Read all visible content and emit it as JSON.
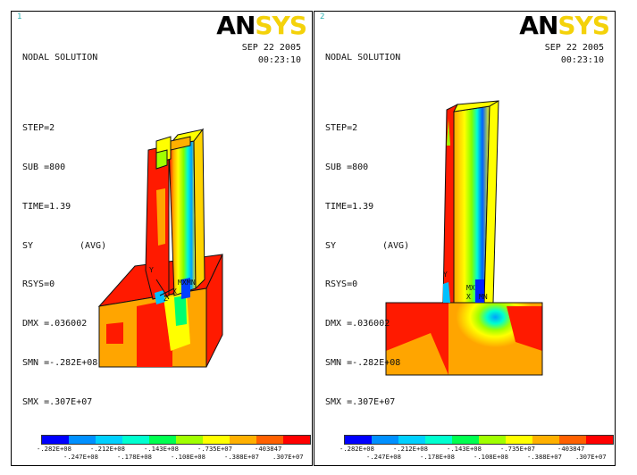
{
  "panels": [
    {
      "window_number": "1",
      "title": "NODAL SOLUTION",
      "step": "STEP=2",
      "sub": "SUB =800",
      "time": "TIME=1.39",
      "quantity": "SY",
      "avg": "(AVG)",
      "rsys": "RSYS=0",
      "dmx": "DMX =.036002",
      "smn": "SMN =-.282E+08",
      "smx": "SMX =.307E+07",
      "date": "SEP 22 2005",
      "clock": "00:23:10",
      "markers": {
        "mx": "MX",
        "mn": "MN",
        "x": "X",
        "y": "Y",
        "z": "Z"
      }
    },
    {
      "window_number": "2",
      "title": "NODAL SOLUTION",
      "step": "STEP=2",
      "sub": "SUB =800",
      "time": "TIME=1.39",
      "quantity": "SY",
      "avg": "(AVG)",
      "rsys": "RSYS=0",
      "dmx": "DMX =.036002",
      "smn": "SMN =-.282E+08",
      "smx": "SMX =.307E+07",
      "date": "SEP 22 2005",
      "clock": "00:23:10",
      "markers": {
        "mx": "MX",
        "mn": "MN",
        "x": "X",
        "y": "Y"
      }
    }
  ],
  "logo": {
    "part1": "AN",
    "part2": "SYS"
  },
  "legend": {
    "colors": [
      "#0000ff",
      "#0090ff",
      "#00d0ff",
      "#00ffd0",
      "#00ff50",
      "#a0ff00",
      "#ffff00",
      "#ffb000",
      "#ff6000",
      "#ff0000"
    ],
    "top_labels": [
      "-.282E+08",
      "-.212E+08",
      "-.143E+08",
      "-.735E+07",
      "-403847"
    ],
    "bottom_labels": [
      "-.247E+08",
      "-.178E+08",
      "-.108E+08",
      "-.388E+07",
      ".307E+07"
    ]
  }
}
